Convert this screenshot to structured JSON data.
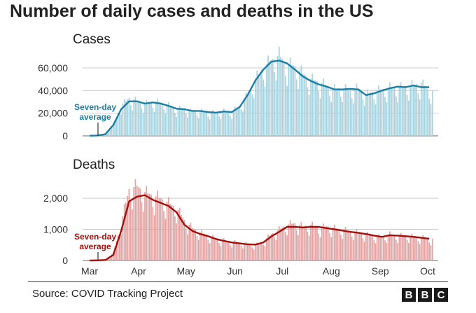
{
  "title": "Number of daily cases and deaths in the US",
  "source": "Source: COVID Tracking Project",
  "logo": {
    "letters": [
      "B",
      "B",
      "C"
    ]
  },
  "colors": {
    "cases_bar": "#a9d3df",
    "cases_line": "#1a7fa3",
    "deaths_bar": "#e3a3a3",
    "deaths_line": "#a3100c",
    "grid": "#cccccc"
  },
  "chart_data": [
    {
      "type": "bar",
      "title": "Cases",
      "yticks": [
        "0",
        "20,000",
        "40,000",
        "60,000"
      ],
      "ylim": [
        0,
        73000
      ],
      "annotation": "Seven-day average",
      "annotation_lines": [
        "Seven-day",
        "average"
      ],
      "series": [
        {
          "name": "Daily cases (bars)",
          "x": [
            0,
            5,
            10,
            15,
            20,
            25,
            30,
            35,
            40,
            45,
            50,
            55,
            60,
            65,
            70,
            75,
            80,
            85,
            90,
            95,
            100,
            105,
            110,
            115,
            120,
            125,
            130,
            135,
            140,
            145,
            150,
            155,
            160,
            165,
            170,
            175,
            180,
            185,
            190,
            195,
            200,
            205,
            210,
            215
          ],
          "values": [
            100,
            300,
            2000,
            10500,
            27000,
            33500,
            31000,
            28500,
            30500,
            29500,
            27000,
            24000,
            24500,
            21500,
            22500,
            21000,
            20500,
            22000,
            21500,
            26500,
            37000,
            50500,
            60500,
            67000,
            71500,
            63000,
            62000,
            55000,
            50500,
            48000,
            44500,
            41500,
            42500,
            40000,
            42500,
            37000,
            39500,
            41000,
            43000,
            42500,
            44000,
            45000,
            46500,
            40000
          ]
        },
        {
          "name": "Seven-day average",
          "x": [
            0,
            5,
            10,
            15,
            20,
            25,
            30,
            35,
            40,
            45,
            50,
            55,
            60,
            65,
            70,
            75,
            80,
            85,
            90,
            95,
            100,
            105,
            110,
            115,
            120,
            125,
            130,
            135,
            140,
            145,
            150,
            155,
            160,
            165,
            170,
            175,
            180,
            185,
            190,
            195,
            200,
            205,
            210,
            215
          ],
          "values": [
            100,
            250,
            1500,
            9500,
            23500,
            30500,
            30500,
            28500,
            29500,
            28500,
            26500,
            24000,
            23500,
            22000,
            22000,
            21000,
            20500,
            21500,
            21000,
            25500,
            36000,
            49000,
            58500,
            65500,
            66500,
            64000,
            58500,
            52500,
            48500,
            45500,
            43500,
            41000,
            41000,
            41500,
            41000,
            36000,
            37500,
            40000,
            42000,
            43500,
            43000,
            44500,
            43000,
            43000
          ]
        }
      ]
    },
    {
      "type": "bar",
      "title": "Deaths",
      "yticks": [
        "0",
        "1,000",
        "2,000"
      ],
      "ylim": [
        0,
        2700
      ],
      "annotation": "Seven-day average",
      "annotation_lines": [
        "Seven-day",
        "average"
      ],
      "series": [
        {
          "name": "Daily deaths (bars)",
          "x": [
            0,
            5,
            10,
            15,
            20,
            25,
            30,
            35,
            40,
            45,
            50,
            55,
            60,
            65,
            70,
            75,
            80,
            85,
            90,
            95,
            100,
            105,
            110,
            115,
            120,
            125,
            130,
            135,
            140,
            145,
            150,
            155,
            160,
            165,
            170,
            175,
            180,
            185,
            190,
            195,
            200,
            205,
            210,
            215
          ],
          "values": [
            2,
            5,
            20,
            250,
            1200,
            2300,
            2400,
            2200,
            2100,
            2000,
            1850,
            1700,
            1300,
            1050,
            900,
            820,
            700,
            650,
            600,
            580,
            520,
            500,
            620,
            850,
            1000,
            1150,
            1200,
            1100,
            1150,
            1050,
            1100,
            1050,
            1000,
            950,
            900,
            850,
            800,
            750,
            850,
            800,
            820,
            780,
            750,
            700
          ]
        },
        {
          "name": "Seven-day average",
          "x": [
            0,
            5,
            10,
            15,
            20,
            25,
            30,
            35,
            40,
            45,
            50,
            55,
            60,
            65,
            70,
            75,
            80,
            85,
            90,
            95,
            100,
            105,
            110,
            115,
            120,
            125,
            130,
            135,
            140,
            145,
            150,
            155,
            160,
            165,
            170,
            175,
            180,
            185,
            190,
            195,
            200,
            205,
            210,
            215
          ],
          "values": [
            2,
            5,
            15,
            180,
            950,
            1900,
            2050,
            2100,
            1950,
            1850,
            1750,
            1550,
            1150,
            950,
            850,
            780,
            690,
            630,
            580,
            550,
            520,
            510,
            580,
            770,
            920,
            1080,
            1080,
            1060,
            1080,
            1080,
            1040,
            1000,
            960,
            920,
            890,
            850,
            800,
            760,
            810,
            800,
            780,
            760,
            730,
            700
          ]
        }
      ]
    }
  ],
  "xaxis": {
    "labels": [
      "Mar",
      "Apr",
      "May",
      "Jun",
      "Jul",
      "Aug",
      "Sep",
      "Oct"
    ],
    "positions": [
      0,
      31,
      61,
      92,
      122,
      153,
      184,
      214
    ]
  }
}
